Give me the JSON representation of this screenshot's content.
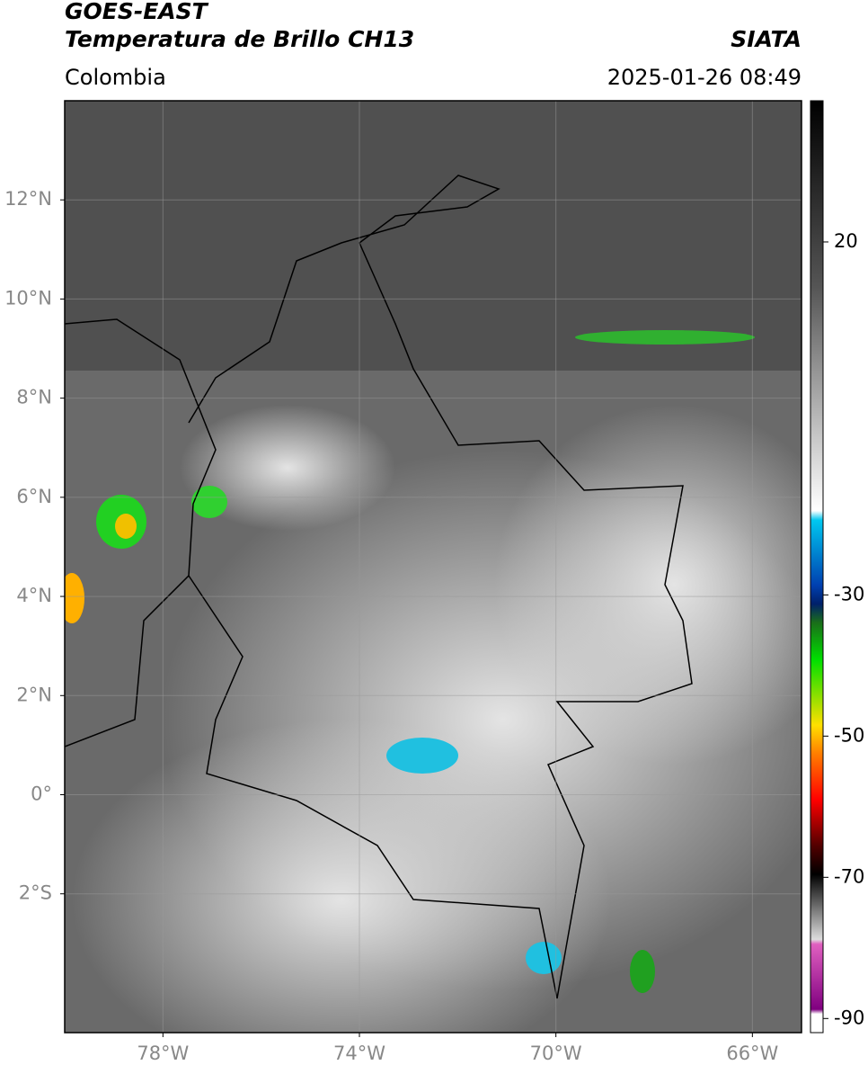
{
  "header": {
    "title": "GOES-EAST",
    "subtitle": "Temperatura de Brillo CH13",
    "source": "SIATA",
    "region": "Colombia",
    "datetime": "2025-01-26 08:49"
  },
  "map": {
    "lat_lim": [
      14,
      -4.8
    ],
    "lon_lim": [
      -80,
      -65
    ],
    "lat_ticks": [
      {
        "value": 12,
        "label": "12°N"
      },
      {
        "value": 10,
        "label": "10°N"
      },
      {
        "value": 8,
        "label": "8°N"
      },
      {
        "value": 6,
        "label": "6°N"
      },
      {
        "value": 4,
        "label": "4°N"
      },
      {
        "value": 2,
        "label": "2°N"
      },
      {
        "value": 0,
        "label": "0°"
      },
      {
        "value": -2,
        "label": "2°S"
      }
    ],
    "lon_ticks": [
      {
        "value": -78,
        "label": "78°W"
      },
      {
        "value": -74,
        "label": "74°W"
      },
      {
        "value": -70,
        "label": "70°W"
      },
      {
        "value": -66,
        "label": "66°W"
      }
    ],
    "grid": true
  },
  "colorbar": {
    "lim": [
      40,
      -92
    ],
    "ticks": [
      20,
      -30,
      -50,
      -70,
      -90
    ]
  }
}
